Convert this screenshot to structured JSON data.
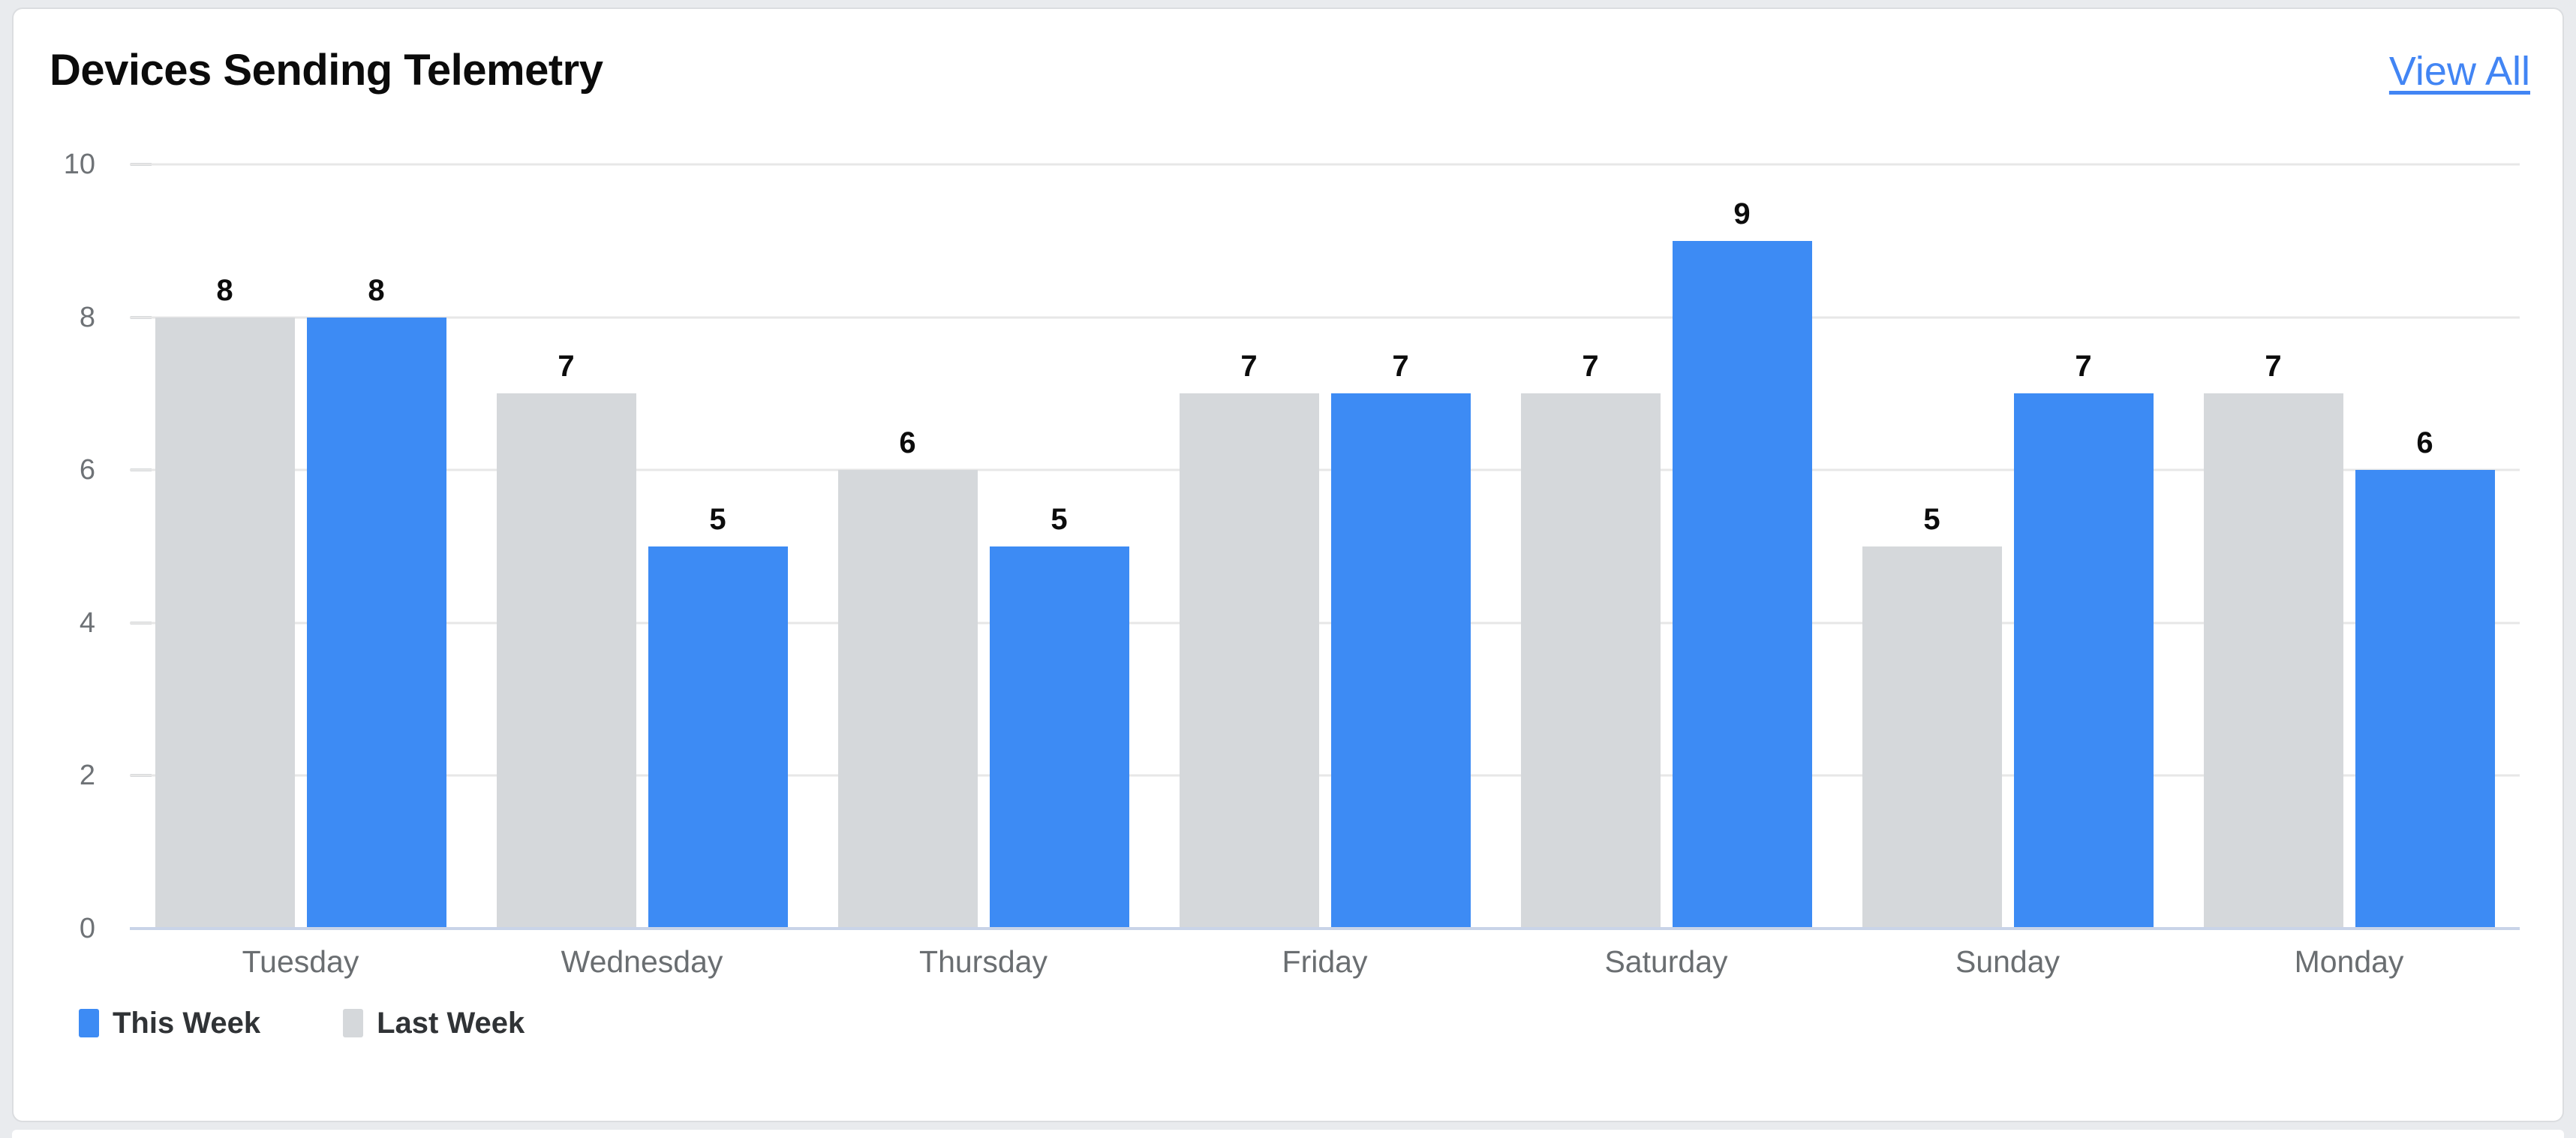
{
  "card": {
    "title": "Devices Sending Telemetry",
    "view_all_label": "View All"
  },
  "chart_data": {
    "type": "bar",
    "title": "Devices Sending Telemetry",
    "categories": [
      "Tuesday",
      "Wednesday",
      "Thursday",
      "Friday",
      "Saturday",
      "Sunday",
      "Monday"
    ],
    "series": [
      {
        "name": "This Week",
        "color": "#3D8BF4",
        "values": [
          8,
          5,
          5,
          7,
          9,
          7,
          6
        ]
      },
      {
        "name": "Last Week",
        "color": "#D5D8DB",
        "values": [
          8,
          7,
          6,
          7,
          7,
          5,
          7
        ]
      }
    ],
    "bar_draw_order": [
      "Last Week",
      "This Week"
    ],
    "value_labels": true,
    "ylim": [
      0,
      10
    ],
    "yticks": [
      0,
      2,
      4,
      6,
      8,
      10
    ],
    "grid": "horizontal",
    "legend_position": "bottom-left"
  },
  "colors": {
    "this_week": "#3D8BF4",
    "last_week": "#D5D8DB",
    "gridline": "#E7E7E7",
    "baseline": "#C9D4E8",
    "tick": "#C9CDD2",
    "axis_text": "#6E7276",
    "value_label": "#0C0C0C",
    "title_text": "#0B0B0B",
    "link": "#4285F4",
    "legend_text": "#303336",
    "page_bg": "#E9EBEE",
    "card_bg": "#FFFFFF",
    "card_border": "#DBDDE0"
  }
}
